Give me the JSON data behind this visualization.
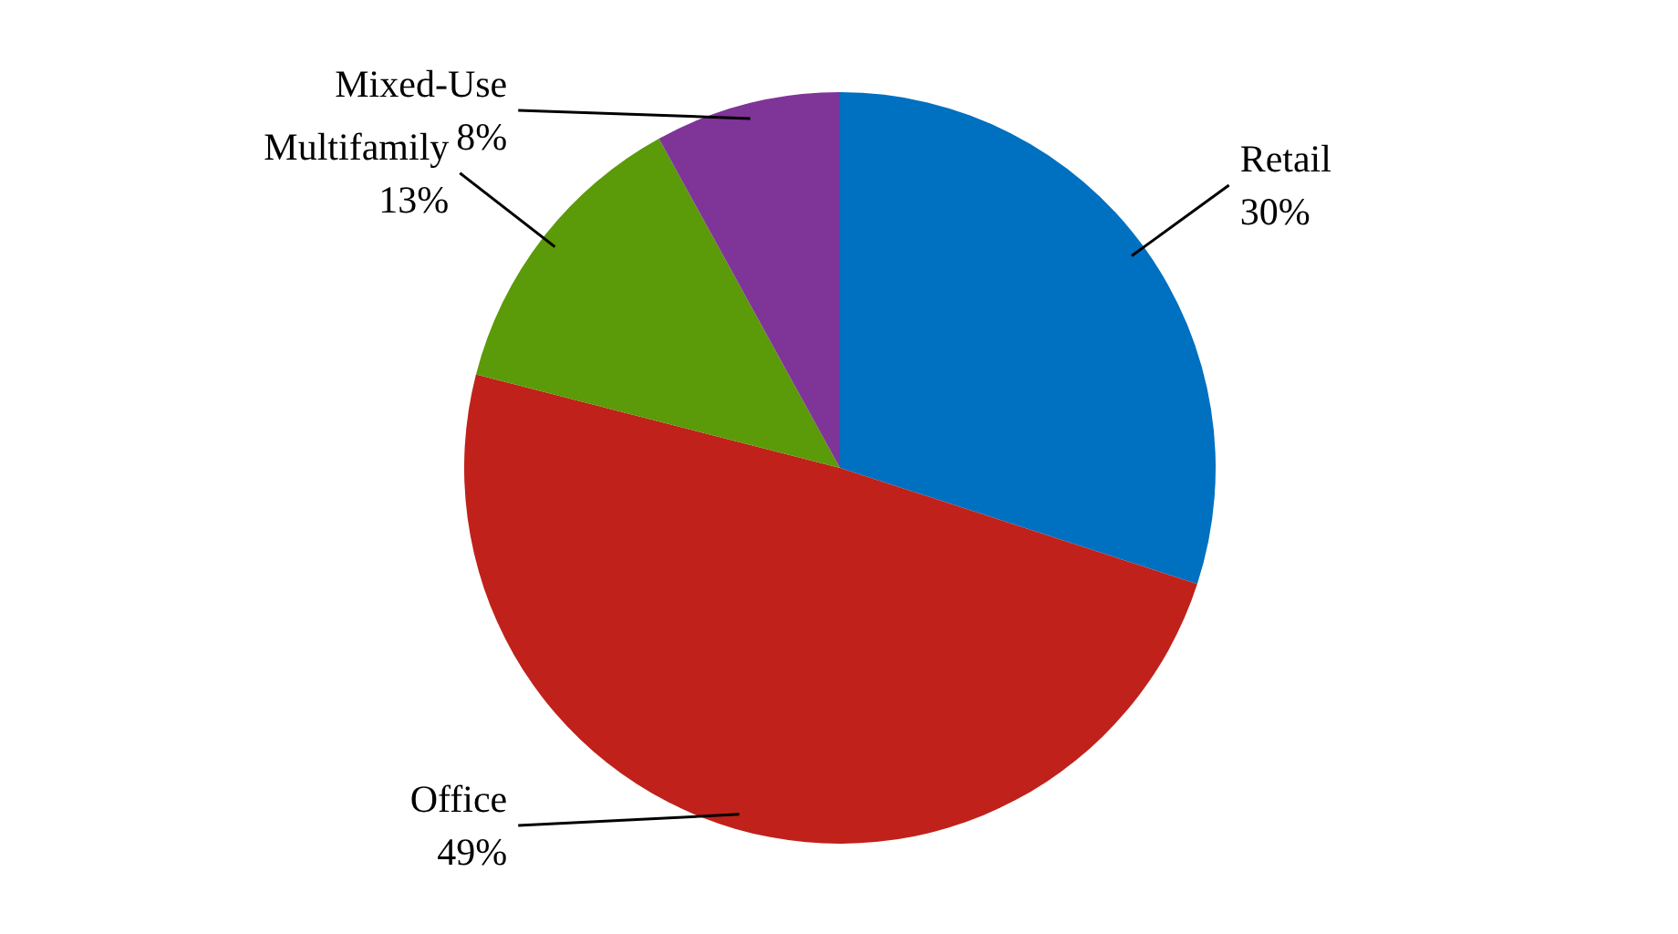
{
  "chart_data": {
    "type": "pie",
    "categories": [
      "Retail",
      "Office",
      "Multifamily",
      "Mixed-Use"
    ],
    "values": [
      30,
      49,
      13,
      8
    ],
    "value_labels": [
      "30%",
      "49%",
      "13%",
      "8%"
    ],
    "colors": [
      "#0070c0",
      "#c0211a",
      "#5b9a08",
      "#7f3497"
    ]
  }
}
